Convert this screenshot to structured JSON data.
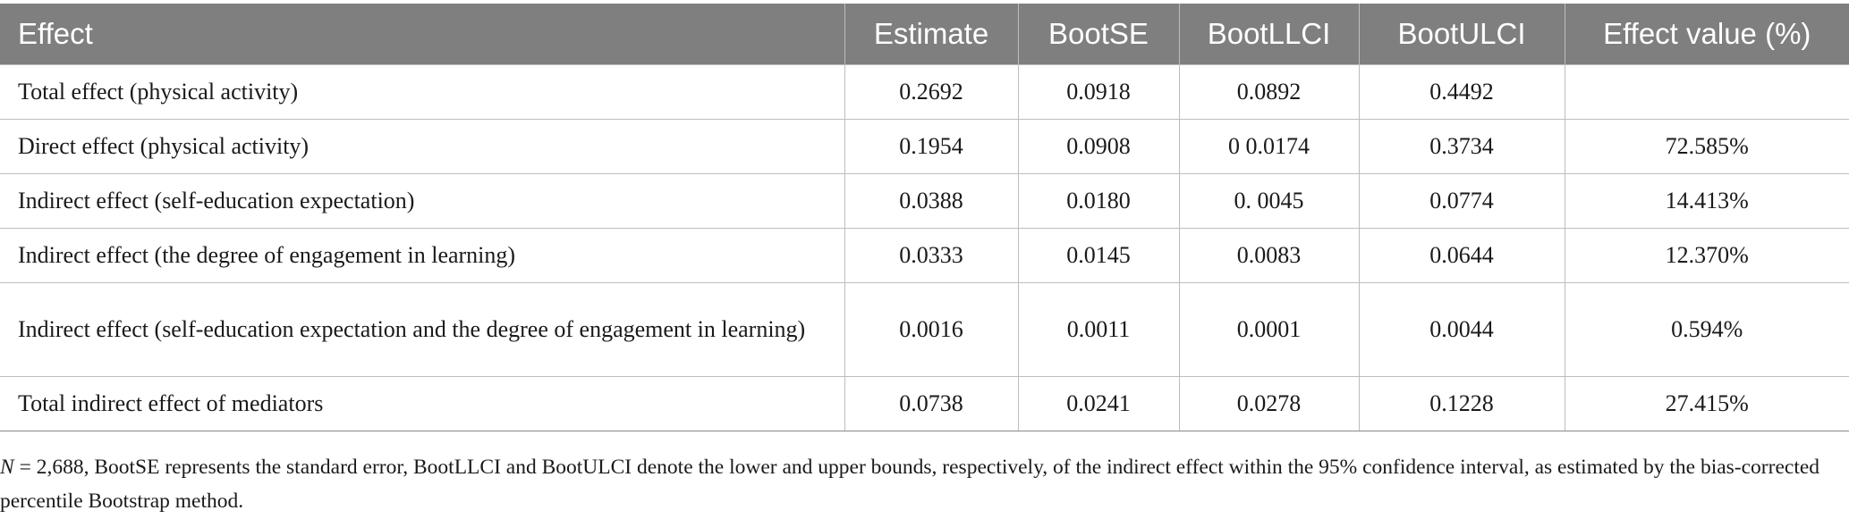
{
  "table": {
    "headers": [
      "Effect",
      "Estimate",
      "BootSE",
      "BootLLCI",
      "BootULCI",
      "Effect value (%)"
    ],
    "rows": [
      {
        "effect": "Total effect (physical activity)",
        "estimate": "0.2692",
        "boot_se": "0.0918",
        "boot_llci": "0.0892",
        "boot_ulci": "0.4492",
        "effect_value": ""
      },
      {
        "effect": "Direct effect (physical activity)",
        "estimate": "0.1954",
        "boot_se": "0.0908",
        "boot_llci": "0 0.0174",
        "boot_ulci": "0.3734",
        "effect_value": "72.585%"
      },
      {
        "effect": "Indirect effect (self-education expectation)",
        "estimate": "0.0388",
        "boot_se": "0.0180",
        "boot_llci": "0. 0045",
        "boot_ulci": "0.0774",
        "effect_value": "14.413%"
      },
      {
        "effect": "Indirect effect (the degree of engagement in learning)",
        "estimate": "0.0333",
        "boot_se": "0.0145",
        "boot_llci": "0.0083",
        "boot_ulci": "0.0644",
        "effect_value": "12.370%"
      },
      {
        "effect": "Indirect effect (self-education expectation and the degree of engagement in learning)",
        "estimate": "0.0016",
        "boot_se": "0.0011",
        "boot_llci": "0.0001",
        "boot_ulci": "0.0044",
        "effect_value": "0.594%"
      },
      {
        "effect": "Total indirect effect of mediators",
        "estimate": "0.0738",
        "boot_se": "0.0241",
        "boot_llci": "0.0278",
        "boot_ulci": "0.1228",
        "effect_value": "27.415%"
      }
    ]
  },
  "footnote": {
    "n_symbol": "N",
    "text": " = 2,688, BootSE represents the standard error, BootLLCI and BootULCI denote the lower and upper bounds, respectively, of the indirect effect within the 95% confidence interval, as estimated by the bias-corrected percentile Bootstrap method."
  }
}
